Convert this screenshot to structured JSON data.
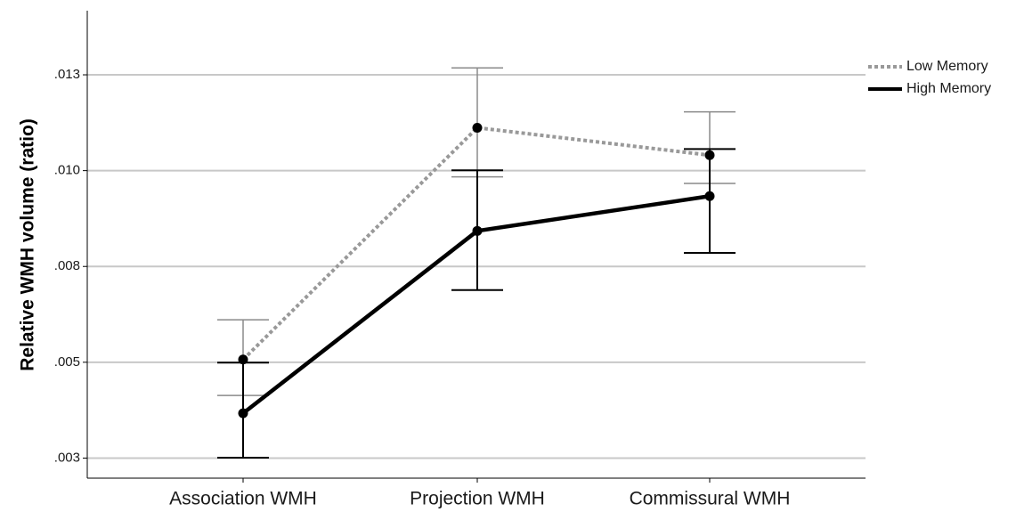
{
  "chart_data": {
    "type": "line",
    "title": "",
    "xlabel": "",
    "ylabel": "Relative WMH volume (ratio)",
    "categories": [
      "Association WMH",
      "Projection WMH",
      "Commissural WMH"
    ],
    "ylim": [
      0.00245,
      0.01455
    ],
    "yticks": [
      {
        "value": 0.00297,
        "label": ".003"
      },
      {
        "value": 0.00545,
        "label": ".005"
      },
      {
        "value": 0.00793,
        "label": ".008"
      },
      {
        "value": 0.01041,
        "label": ".010"
      },
      {
        "value": 0.01289,
        "label": ".013"
      }
    ],
    "grid": true,
    "legend_position": "top-right",
    "series": [
      {
        "name": "Low Memory",
        "color": "#999999",
        "style": "dotted",
        "values": [
          0.00552,
          0.01152,
          0.01081
        ],
        "err_low": [
          0.00459,
          0.01025,
          0.01008
        ],
        "err_high": [
          0.00655,
          0.01307,
          0.01193
        ]
      },
      {
        "name": "High Memory",
        "color": "#000000",
        "style": "solid",
        "values": [
          0.00413,
          0.00885,
          0.00975
        ],
        "err_low": [
          0.00298,
          0.00732,
          0.00828
        ],
        "err_high": [
          0.00544,
          0.01042,
          0.01097
        ]
      }
    ]
  }
}
